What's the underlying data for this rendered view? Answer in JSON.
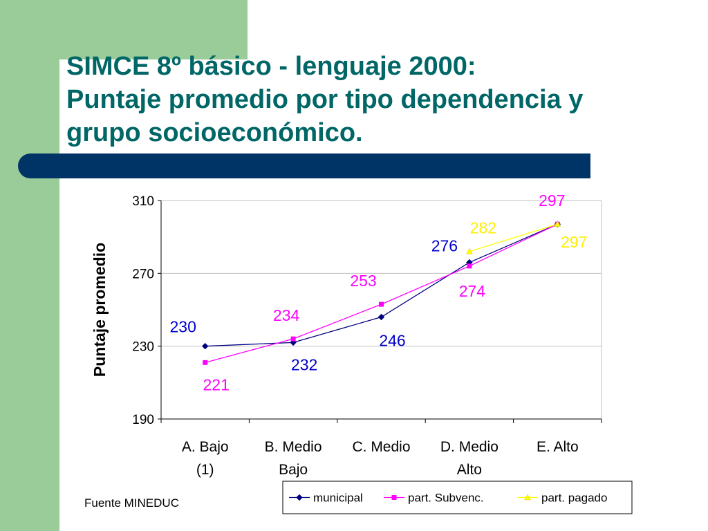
{
  "title_lines": [
    "SIMCE 8º básico - lenguaje 2000:",
    "Puntaje promedio por tipo dependencia y",
    "grupo socioeconómico."
  ],
  "source": "Fuente MINEDUC",
  "colors": {
    "title": "#006666",
    "background_accent": "#99cc99",
    "bar": "#003366",
    "municipal": "#000080",
    "subvenc": "#ff00ff",
    "pagado": "#ffff00",
    "municipal_label": "#0000cc",
    "subvenc_label": "#ff00ff",
    "pagado_label": "#ffee00"
  },
  "chart_data": {
    "type": "line",
    "title": "",
    "xlabel": "",
    "ylabel": "Puntaje promedio",
    "ylim": [
      190,
      310
    ],
    "yticks": [
      190,
      230,
      270,
      310
    ],
    "grid": "horizontal",
    "legend_position": "bottom",
    "categories": [
      [
        "A. Bajo",
        "(1)"
      ],
      [
        "B. Medio",
        "Bajo"
      ],
      [
        "C. Medio"
      ],
      [
        "D. Medio",
        "Alto"
      ],
      [
        "E. Alto"
      ]
    ],
    "series": [
      {
        "name": "municipal",
        "values": [
          230,
          232,
          246,
          276,
          297
        ],
        "marker": "diamond"
      },
      {
        "name": "part. Subvenc.",
        "values": [
          221,
          234,
          253,
          274,
          297
        ],
        "marker": "square"
      },
      {
        "name": "part. pagado",
        "values": [
          null,
          null,
          null,
          282,
          297
        ],
        "marker": "triangle"
      }
    ],
    "data_labels": [
      {
        "text": "230",
        "series": 0,
        "index": 0
      },
      {
        "text": "232",
        "series": 0,
        "index": 1
      },
      {
        "text": "246",
        "series": 0,
        "index": 2
      },
      {
        "text": "276",
        "series": 0,
        "index": 3
      },
      {
        "text": "221",
        "series": 1,
        "index": 0
      },
      {
        "text": "234",
        "series": 1,
        "index": 1
      },
      {
        "text": "253",
        "series": 1,
        "index": 2
      },
      {
        "text": "274",
        "series": 1,
        "index": 3
      },
      {
        "text": "297",
        "series": 1,
        "index": 4
      },
      {
        "text": "282",
        "series": 2,
        "index": 3
      },
      {
        "text": "297",
        "series": 2,
        "index": 4
      }
    ]
  }
}
